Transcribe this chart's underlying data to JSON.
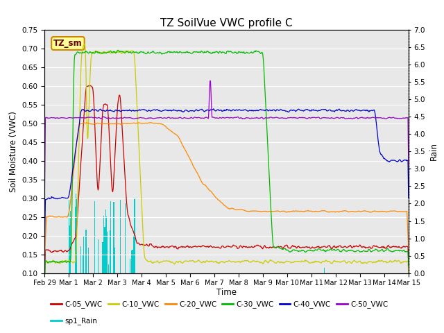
{
  "title": "TZ SoilVue VWC profile C",
  "xlabel": "Time",
  "ylabel_left": "Soil Moisture (VWC)",
  "ylabel_right": "Rain",
  "ylim_left": [
    0.1,
    0.75
  ],
  "ylim_right": [
    0.0,
    7.0
  ],
  "yticks_left": [
    0.1,
    0.15,
    0.2,
    0.25,
    0.3,
    0.35,
    0.4,
    0.45,
    0.5,
    0.55,
    0.6,
    0.65,
    0.7,
    0.75
  ],
  "yticks_right": [
    0.0,
    0.5,
    1.0,
    1.5,
    2.0,
    2.5,
    3.0,
    3.5,
    4.0,
    4.5,
    5.0,
    5.5,
    6.0,
    6.5,
    7.0
  ],
  "xtick_labels": [
    "Feb 29",
    "Mar 1",
    "Mar 2",
    "Mar 3",
    "Mar 4",
    "Mar 5",
    "Mar 6",
    "Mar 7",
    "Mar 8",
    "Mar 9",
    "Mar 10",
    "Mar 11",
    "Mar 12",
    "Mar 13",
    "Mar 14",
    "Mar 15"
  ],
  "colors": {
    "C05": "#cc0000",
    "C10": "#cccc00",
    "C20": "#ff8800",
    "C30": "#00bb00",
    "C40": "#0000cc",
    "C50": "#9900cc",
    "rain": "#00cccc",
    "bg": "#e8e8e8",
    "box_fill": "#ffff99",
    "box_edge": "#cc8800"
  },
  "annotation_text": "TZ_sm"
}
